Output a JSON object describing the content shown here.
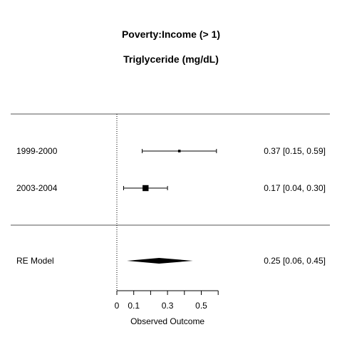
{
  "titles": [
    "Poverty:Income (> 1)",
    "Triglyceride (mg/dL)"
  ],
  "chart_data": {
    "type": "forest",
    "xlabel": "Observed Outcome",
    "xlim": [
      0,
      0.6
    ],
    "xticks": [
      0,
      0.1,
      0.3,
      0.5
    ],
    "tick_labels": [
      "0",
      "0.1",
      "0.3",
      "0.5"
    ],
    "reference_line": 0,
    "studies": [
      {
        "label": "1999-2000",
        "estimate": 0.37,
        "ci_lower": 0.15,
        "ci_upper": 0.59,
        "text": "0.37 [0.15, 0.59]",
        "weight": 0.2
      },
      {
        "label": "2003-2004",
        "estimate": 0.17,
        "ci_lower": 0.04,
        "ci_upper": 0.3,
        "text": "0.17 [0.04, 0.30]",
        "weight": 0.8
      }
    ],
    "summary": {
      "label": "RE Model",
      "estimate": 0.25,
      "ci_lower": 0.06,
      "ci_upper": 0.45,
      "text": "0.25 [0.06, 0.45]"
    }
  }
}
